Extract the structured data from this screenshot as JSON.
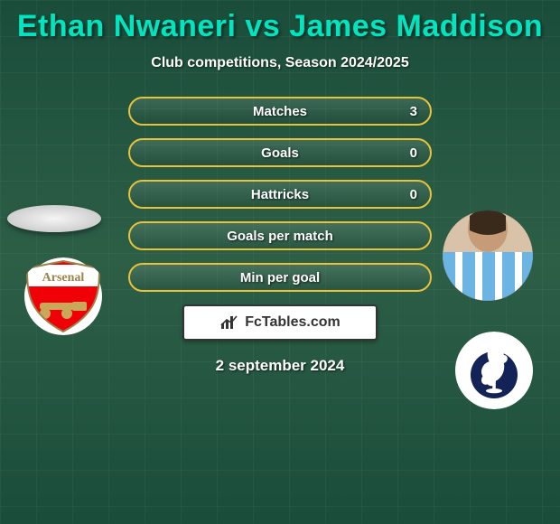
{
  "title": "Ethan Nwaneri vs James Maddison",
  "subtitle": "Club competitions, Season 2024/2025",
  "date_text": "2 september 2024",
  "watermark": "FcTables.com",
  "bars": [
    {
      "label": "Matches",
      "value": "3",
      "border": "#e8c23a"
    },
    {
      "label": "Goals",
      "value": "0",
      "border": "#e8c23a"
    },
    {
      "label": "Hattricks",
      "value": "0",
      "border": "#e8c23a"
    },
    {
      "label": "Goals per match",
      "value": "",
      "border": "#e8c23a"
    },
    {
      "label": "Min per goal",
      "value": "",
      "border": "#e8c23a"
    }
  ],
  "colors": {
    "title": "#00e5c0",
    "background_top": "#1a4d3a",
    "background_mid": "#2d5f47",
    "bar_border": "#e8c23a",
    "text": "#ffffff"
  },
  "left_player": {
    "club": "Arsenal",
    "club_colors": {
      "primary": "#ef0107",
      "secondary": "#ffffff",
      "accent": "#9c824a"
    }
  },
  "right_player": {
    "club": "Tottenham",
    "club_colors": {
      "primary": "#132257",
      "secondary": "#ffffff"
    },
    "kit_stripes": [
      "#ffffff",
      "#6cb4e4"
    ]
  }
}
